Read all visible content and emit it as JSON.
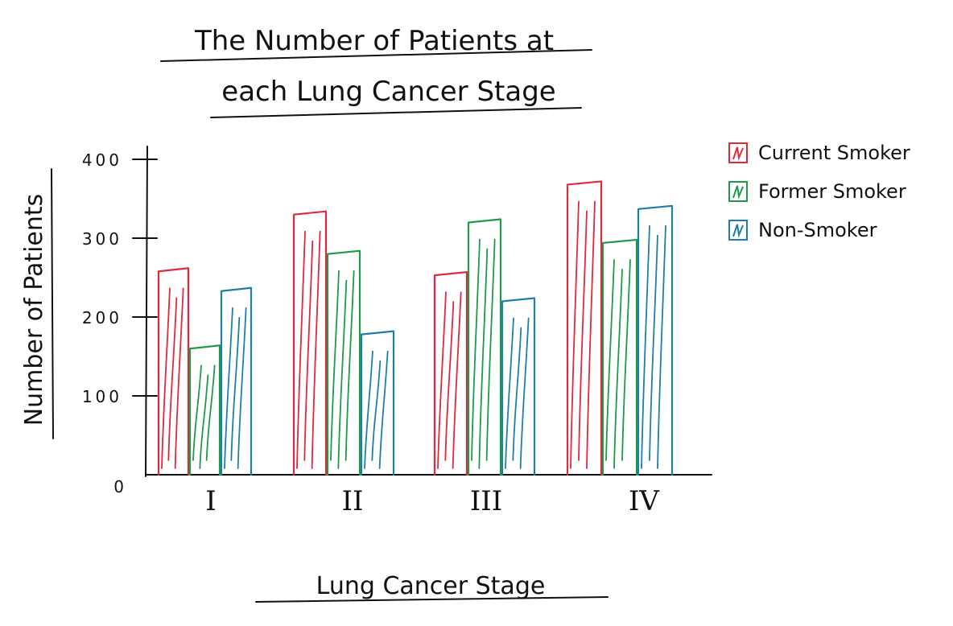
{
  "chart_data": {
    "type": "bar",
    "title_lines": [
      "The Number of Patients at",
      "each Lung Cancer Stage"
    ],
    "xlabel": "Lung Cancer Stage",
    "ylabel": "Number of Patients",
    "categories": [
      "I",
      "II",
      "III",
      "IV"
    ],
    "series": [
      {
        "name": "Current Smoker",
        "color": "#e02a3c",
        "values": [
          262,
          334,
          257,
          372
        ]
      },
      {
        "name": "Former Smoker",
        "color": "#1f9a4a",
        "values": [
          164,
          284,
          324,
          298
        ]
      },
      {
        "name": "Non-Smoker",
        "color": "#1f7ea6",
        "values": [
          237,
          182,
          224,
          341
        ]
      }
    ],
    "yticks": [
      {
        "value": 0,
        "label": "0"
      },
      {
        "value": 100,
        "label": "100"
      },
      {
        "value": 200,
        "label": "200"
      },
      {
        "value": 300,
        "label": "300"
      },
      {
        "value": 400,
        "label": "400"
      }
    ],
    "ylim": [
      0,
      400
    ],
    "grid": false,
    "legend_position": "top-right"
  }
}
